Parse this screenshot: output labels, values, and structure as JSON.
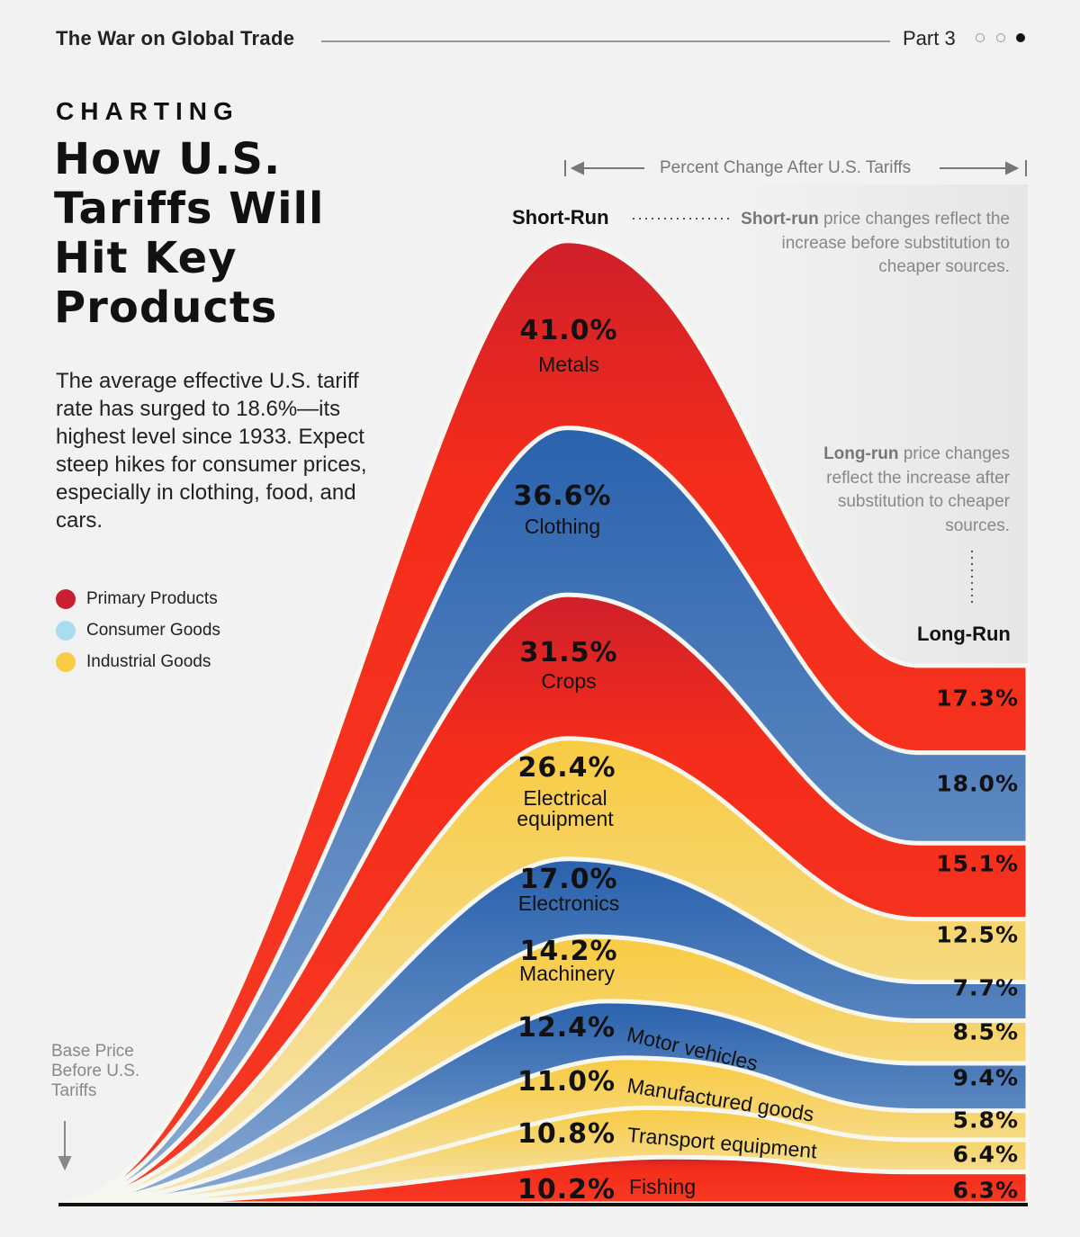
{
  "header": {
    "series": "The War on Global Trade",
    "part": "Part 3",
    "parts_total": 3,
    "current_part": 3
  },
  "kicker": "CHARTING",
  "title": "How U.S. Tariffs Will Hit Key Products",
  "description": "The average effective U.S. tariff rate has surged to 18.6%—its highest level since 1933. Expect steep hikes for consumer prices, especially in clothing, food, and cars.",
  "legend": [
    {
      "label": "Primary Products",
      "color": "#c8202f"
    },
    {
      "label": "Consumer Goods",
      "color": "#a9dcee"
    },
    {
      "label": "Industrial Goods",
      "color": "#f8cc45"
    }
  ],
  "axis_label": "Percent Change After U.S. Tariffs",
  "short_run": {
    "label": "Short-Run",
    "note_bold": "Short-run",
    "note": "price changes reflect the increase before substitution to cheaper sources."
  },
  "long_run": {
    "label": "Long-Run",
    "note_bold": "Long-run",
    "note": "price changes reflect the increase after substitution to cheaper sources."
  },
  "base_label": "Base Price Before U.S. Tariffs",
  "chart_data": {
    "type": "area",
    "title": "How U.S. Tariffs Will Hit Key Products",
    "xlabel": "Percent Change After U.S. Tariffs",
    "x": [
      "Base",
      "Short-Run",
      "Long-Run"
    ],
    "series": [
      {
        "name": "Metals",
        "group": "Primary Products",
        "short": "41.0%",
        "long": "17.3%",
        "values": [
          0,
          41.0,
          17.3
        ]
      },
      {
        "name": "Clothing",
        "group": "Consumer Goods",
        "short": "36.6%",
        "long": "18.0%",
        "values": [
          0,
          36.6,
          18.0
        ]
      },
      {
        "name": "Crops",
        "group": "Primary Products",
        "short": "31.5%",
        "long": "15.1%",
        "values": [
          0,
          31.5,
          15.1
        ]
      },
      {
        "name": "Electrical equipment",
        "group": "Industrial Goods",
        "short": "26.4%",
        "long": "12.5%",
        "values": [
          0,
          26.4,
          12.5
        ]
      },
      {
        "name": "Electronics",
        "group": "Consumer Goods",
        "short": "17.0%",
        "long": "7.7%",
        "values": [
          0,
          17.0,
          7.7
        ]
      },
      {
        "name": "Machinery",
        "group": "Industrial Goods",
        "short": "14.2%",
        "long": "8.5%",
        "values": [
          0,
          14.2,
          8.5
        ]
      },
      {
        "name": "Motor vehicles",
        "group": "Consumer Goods",
        "short": "12.4%",
        "long": "9.4%",
        "values": [
          0,
          12.4,
          9.4
        ]
      },
      {
        "name": "Manufactured goods",
        "group": "Industrial Goods",
        "short": "11.0%",
        "long": "5.8%",
        "values": [
          0,
          11.0,
          5.8
        ]
      },
      {
        "name": "Transport equipment",
        "group": "Industrial Goods",
        "short": "10.8%",
        "long": "6.4%",
        "values": [
          0,
          10.8,
          6.4
        ]
      },
      {
        "name": "Fishing",
        "group": "Primary Products",
        "short": "10.2%",
        "long": "6.3%",
        "values": [
          0,
          10.2,
          6.3
        ]
      }
    ]
  }
}
